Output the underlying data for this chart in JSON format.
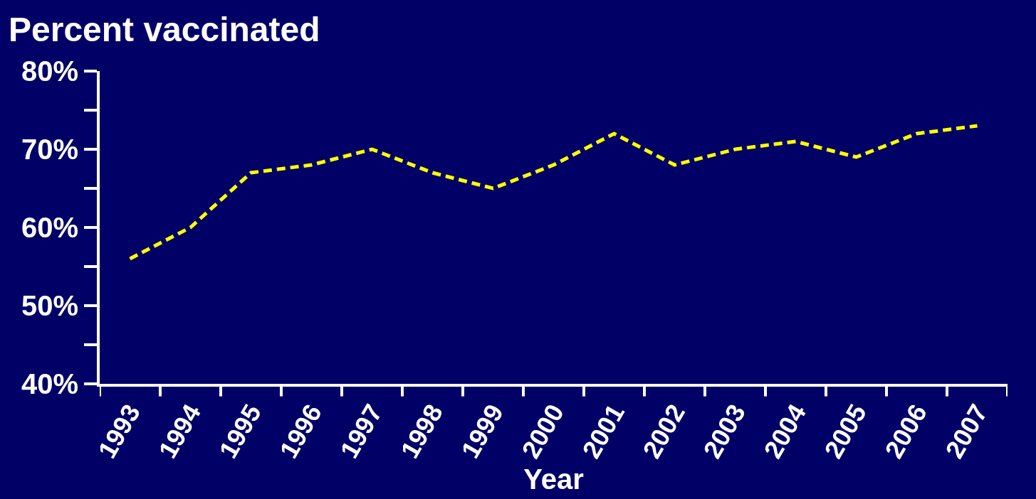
{
  "chart_data": {
    "type": "line",
    "ylabel": "Percent vaccinated",
    "xlabel": "Year",
    "categories": [
      "1993",
      "1994",
      "1995",
      "1996",
      "1997",
      "1998",
      "1999",
      "2000",
      "2001",
      "2002",
      "2003",
      "2004",
      "2005",
      "2006",
      "2007"
    ],
    "series": [
      {
        "color": "#ffff00",
        "values": [
          56,
          60,
          67,
          68,
          70,
          67,
          65,
          68,
          72,
          68,
          70,
          71,
          69,
          72,
          73
        ]
      }
    ],
    "ylim": [
      40,
      80
    ],
    "yticks": [
      {
        "value": 40,
        "label": "40%"
      },
      {
        "value": 50,
        "label": "50%"
      },
      {
        "value": 60,
        "label": "60%"
      },
      {
        "value": 70,
        "label": "70%"
      },
      {
        "value": 80,
        "label": "80%"
      }
    ],
    "grid": false,
    "legend": false,
    "marker": "none",
    "line_style": "dashed"
  }
}
